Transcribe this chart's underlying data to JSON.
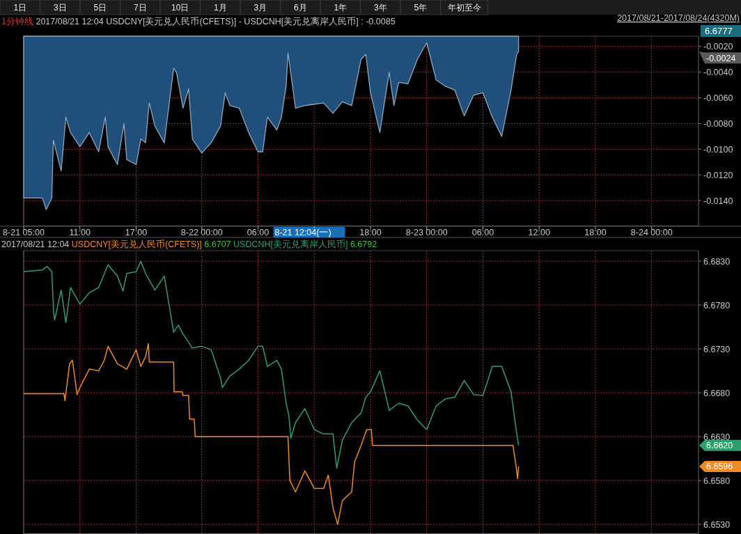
{
  "chart_data": [
    {
      "type": "area",
      "title": "1分钟线",
      "subtitle": "2017/08/21 12:04 USDCNY[美元兑人民币(CFETS)] - USDCNH[美元兑离岸人民币] : -0.0085",
      "xlim": [
        "2017-08-21T05:00",
        "2017-08-24T05:00"
      ],
      "xticks": [
        {
          "value": "2017-08-21T05:00",
          "label": "8-21 05:00"
        },
        {
          "value": "2017-08-21T11:00",
          "label": "11:00"
        },
        {
          "value": "2017-08-21T17:00",
          "label": "17:00"
        },
        {
          "value": "2017-08-22T00:00",
          "label": "8-22 00:00"
        },
        {
          "value": "2017-08-22T06:00",
          "label": "06:00"
        },
        {
          "value": "2017-08-22T12:00",
          "label": null
        },
        {
          "value": "2017-08-22T18:00",
          "label": "18:00"
        },
        {
          "value": "2017-08-23T00:00",
          "label": "8-23 00:00"
        },
        {
          "value": "2017-08-23T06:00",
          "label": "06:00"
        },
        {
          "value": "2017-08-23T12:00",
          "label": "12:00"
        },
        {
          "value": "2017-08-23T18:00",
          "label": "18:00"
        },
        {
          "value": "2017-08-24T00:00",
          "label": "8-24 00:00"
        }
      ],
      "ylim": [
        -0.016,
        -0.0012
      ],
      "yticks": [
        {
          "value": -0.002,
          "label": "-0.0020"
        },
        {
          "value": -0.004,
          "label": "-0.0040"
        },
        {
          "value": -0.006,
          "label": "-0.0060"
        },
        {
          "value": -0.008,
          "label": "-0.0080"
        },
        {
          "value": -0.01,
          "label": "-0.0100"
        },
        {
          "value": -0.012,
          "label": "-0.0120"
        },
        {
          "value": -0.014,
          "label": "-0.0140"
        }
      ],
      "grid": true,
      "annotations": [
        "2017/08/21-2017/08/24(4320M)",
        "8-21 12:04(一)",
        "6.6777",
        "-0.0024",
        "1日",
        "3日",
        "5日",
        "7日",
        "10日",
        "1月",
        "3月",
        "6月",
        "1年",
        "3年",
        "5年",
        "年初至今"
      ],
      "series": [
        {
          "color": "#1f4f7a",
          "x": [
            "2017-08-21T05:00",
            "2017-08-21T06:00",
            "2017-08-21T07:00",
            "2017-08-21T07:24",
            "2017-08-21T08:00",
            "2017-08-21T08:10",
            "2017-08-21T09:00",
            "2017-08-21T09:30",
            "2017-08-21T10:00",
            "2017-08-21T11:00",
            "2017-08-21T12:00",
            "2017-08-21T13:00",
            "2017-08-21T13:42",
            "2017-08-21T14:00",
            "2017-08-21T15:00",
            "2017-08-21T15:42",
            "2017-08-21T16:00",
            "2017-08-21T17:00",
            "2017-08-21T17:30",
            "2017-08-21T18:00",
            "2017-08-21T18:24",
            "2017-08-21T19:00",
            "2017-08-21T20:00",
            "2017-08-21T21:00",
            "2017-08-21T21:18",
            "2017-08-21T22:00",
            "2017-08-21T22:36",
            "2017-08-21T23:00",
            "2017-08-22T00:00",
            "2017-08-22T01:00",
            "2017-08-22T02:00",
            "2017-08-22T02:30",
            "2017-08-22T03:00",
            "2017-08-22T04:00",
            "2017-08-22T05:00",
            "2017-08-22T06:00",
            "2017-08-22T06:30",
            "2017-08-22T07:00",
            "2017-08-22T08:00",
            "2017-08-22T08:30",
            "2017-08-22T09:00",
            "2017-08-22T09:12",
            "2017-08-22T10:00",
            "2017-08-22T11:00",
            "2017-08-22T12:00",
            "2017-08-22T13:00",
            "2017-08-22T14:00",
            "2017-08-22T15:00",
            "2017-08-22T16:00",
            "2017-08-22T17:00",
            "2017-08-22T17:30",
            "2017-08-22T18:00",
            "2017-08-22T19:00",
            "2017-08-22T20:00",
            "2017-08-22T20:30",
            "2017-08-22T21:00",
            "2017-08-22T22:00",
            "2017-08-22T23:00",
            "2017-08-23T00:00",
            "2017-08-23T01:00",
            "2017-08-23T02:00",
            "2017-08-23T03:00",
            "2017-08-23T04:00",
            "2017-08-23T05:00",
            "2017-08-23T06:00",
            "2017-08-23T07:00",
            "2017-08-23T08:00",
            "2017-08-23T09:00",
            "2017-08-23T09:36",
            "2017-08-23T09:48"
          ],
          "values": [
            -0.0138,
            -0.0138,
            -0.0138,
            -0.0147,
            -0.0138,
            -0.0093,
            -0.0117,
            -0.0075,
            -0.0087,
            -0.0098,
            -0.0087,
            -0.0102,
            -0.0075,
            -0.0098,
            -0.0112,
            -0.008,
            -0.0108,
            -0.0112,
            -0.0092,
            -0.0095,
            -0.0064,
            -0.0082,
            -0.0095,
            -0.0037,
            -0.004,
            -0.0068,
            -0.0053,
            -0.0092,
            -0.0103,
            -0.0095,
            -0.0082,
            -0.0056,
            -0.0066,
            -0.0068,
            -0.0087,
            -0.0102,
            -0.0102,
            -0.0075,
            -0.0085,
            -0.0075,
            -0.0051,
            -0.0025,
            -0.0068,
            -0.0066,
            -0.0065,
            -0.0064,
            -0.0072,
            -0.0063,
            -0.0066,
            -0.003,
            -0.0026,
            -0.0056,
            -0.0087,
            -0.004,
            -0.0066,
            -0.0048,
            -0.0049,
            -0.003,
            -0.0017,
            -0.0046,
            -0.0051,
            -0.0054,
            -0.0074,
            -0.0058,
            -0.0056,
            -0.0075,
            -0.009,
            -0.0054,
            -0.0026,
            -0.0024
          ]
        }
      ]
    },
    {
      "type": "line",
      "title": "2017/08/21 12:04",
      "xlim": [
        "2017-08-21T05:00",
        "2017-08-24T05:00"
      ],
      "xticks": [
        "2017-08-21T05:00",
        "2017-08-21T11:00",
        "2017-08-21T17:00",
        "2017-08-22T00:00",
        "2017-08-22T06:00",
        "2017-08-22T12:00",
        "2017-08-22T18:00",
        "2017-08-23T00:00",
        "2017-08-23T06:00",
        "2017-08-23T12:00",
        "2017-08-23T18:00",
        "2017-08-24T00:00"
      ],
      "ylim": [
        6.6519,
        6.6842
      ],
      "yticks": [
        {
          "value": 6.683,
          "label": "6.6830"
        },
        {
          "value": 6.678,
          "label": "6.6780"
        },
        {
          "value": 6.673,
          "label": "6.6730"
        },
        {
          "value": 6.668,
          "label": "6.6680"
        },
        {
          "value": 6.663,
          "label": "6.6630"
        },
        {
          "value": 6.658,
          "label": "6.6580"
        },
        {
          "value": 6.653,
          "label": "6.6530"
        }
      ],
      "tick_labels": "y",
      "grid": true,
      "annotations": [
        "6.6707",
        "6.6792",
        "6.6596",
        "6.6620"
      ],
      "series": [
        {
          "name": "USDCNY[美元兑人民币(CFETS)]",
          "color": "#f08a24",
          "x": [
            "2017-08-21T05:00",
            "2017-08-21T09:18",
            "2017-08-21T09:24",
            "2017-08-21T09:54",
            "2017-08-21T10:12",
            "2017-08-21T10:42",
            "2017-08-21T11:00",
            "2017-08-21T12:00",
            "2017-08-21T13:00",
            "2017-08-21T13:36",
            "2017-08-21T14:00",
            "2017-08-21T15:00",
            "2017-08-21T16:00",
            "2017-08-21T17:00",
            "2017-08-21T17:30",
            "2017-08-21T18:00",
            "2017-08-21T18:18",
            "2017-08-21T18:24",
            "2017-08-21T21:00",
            "2017-08-21T21:03",
            "2017-08-21T21:54",
            "2017-08-21T22:00",
            "2017-08-21T22:36",
            "2017-08-21T22:42",
            "2017-08-21T23:12",
            "2017-08-21T23:18",
            "2017-08-22T09:12",
            "2017-08-22T09:24",
            "2017-08-22T10:00",
            "2017-08-22T11:00",
            "2017-08-22T12:00",
            "2017-08-22T13:00",
            "2017-08-22T13:30",
            "2017-08-22T14:00",
            "2017-08-22T14:30",
            "2017-08-22T15:00",
            "2017-08-22T16:00",
            "2017-08-22T16:18",
            "2017-08-22T17:00",
            "2017-08-22T17:36",
            "2017-08-22T18:06",
            "2017-08-22T18:12",
            "2017-08-23T09:12",
            "2017-08-23T09:30",
            "2017-08-23T09:42",
            "2017-08-23T09:48"
          ],
          "values": [
            6.6679,
            6.6679,
            6.6671,
            6.6713,
            6.6717,
            6.6678,
            6.6686,
            6.6707,
            6.6705,
            6.6717,
            6.6733,
            6.6713,
            6.6707,
            6.6729,
            6.671,
            6.6721,
            6.6736,
            6.6715,
            6.6715,
            6.6681,
            6.6681,
            6.6677,
            6.6677,
            6.665,
            6.665,
            6.663,
            6.663,
            6.658,
            6.6567,
            6.6591,
            6.6571,
            6.6571,
            6.6586,
            6.6549,
            6.653,
            6.6557,
            6.6567,
            6.6601,
            6.662,
            6.6638,
            6.6638,
            6.662,
            6.662,
            6.6599,
            6.6582,
            6.6596
          ]
        },
        {
          "name": "USDCNH[美元兑离岸人民币]",
          "color": "#2e9e6e",
          "x": [
            "2017-08-21T05:00",
            "2017-08-21T07:00",
            "2017-08-21T07:30",
            "2017-08-21T08:00",
            "2017-08-21T08:12",
            "2017-08-21T08:18",
            "2017-08-21T09:00",
            "2017-08-21T09:30",
            "2017-08-21T10:00",
            "2017-08-21T11:00",
            "2017-08-21T12:00",
            "2017-08-21T13:00",
            "2017-08-21T14:00",
            "2017-08-21T15:00",
            "2017-08-21T15:36",
            "2017-08-21T16:00",
            "2017-08-21T17:00",
            "2017-08-21T17:30",
            "2017-08-21T18:00",
            "2017-08-21T19:00",
            "2017-08-21T20:00",
            "2017-08-21T21:00",
            "2017-08-21T21:30",
            "2017-08-21T22:00",
            "2017-08-21T23:00",
            "2017-08-22T00:00",
            "2017-08-22T01:00",
            "2017-08-22T02:00",
            "2017-08-22T02:12",
            "2017-08-22T03:00",
            "2017-08-22T04:00",
            "2017-08-22T05:00",
            "2017-08-22T06:00",
            "2017-08-22T06:30",
            "2017-08-22T07:00",
            "2017-08-22T08:00",
            "2017-08-22T08:30",
            "2017-08-22T09:00",
            "2017-08-22T09:18",
            "2017-08-22T09:30",
            "2017-08-22T10:00",
            "2017-08-22T11:00",
            "2017-08-22T12:00",
            "2017-08-22T13:00",
            "2017-08-22T14:00",
            "2017-08-22T14:24",
            "2017-08-22T15:00",
            "2017-08-22T16:00",
            "2017-08-22T17:00",
            "2017-08-22T17:30",
            "2017-08-22T18:00",
            "2017-08-22T19:00",
            "2017-08-22T20:00",
            "2017-08-22T21:00",
            "2017-08-22T22:00",
            "2017-08-22T23:00",
            "2017-08-23T00:00",
            "2017-08-23T01:00",
            "2017-08-23T02:00",
            "2017-08-23T03:00",
            "2017-08-23T04:00",
            "2017-08-23T05:00",
            "2017-08-23T06:00",
            "2017-08-23T07:00",
            "2017-08-23T08:00",
            "2017-08-23T09:00",
            "2017-08-23T09:30",
            "2017-08-23T09:48"
          ],
          "values": [
            6.6818,
            6.682,
            6.6824,
            6.6818,
            6.6771,
            6.6763,
            6.6797,
            6.676,
            6.68,
            6.6781,
            6.6794,
            6.68,
            6.6826,
            6.6813,
            6.6796,
            6.6816,
            6.6818,
            6.683,
            6.6816,
            6.6797,
            6.6813,
            6.6749,
            6.6757,
            6.6747,
            6.6731,
            6.6733,
            6.6729,
            6.6697,
            6.6686,
            6.6699,
            6.6707,
            6.6717,
            6.6733,
            6.6733,
            6.671,
            6.6717,
            6.6707,
            6.6668,
            6.6654,
            6.6628,
            6.6646,
            6.6662,
            6.6638,
            6.6633,
            6.6633,
            6.6594,
            6.6626,
            6.6646,
            6.6657,
            6.6675,
            6.6681,
            6.6705,
            6.666,
            6.6668,
            6.6665,
            6.6649,
            6.6638,
            6.6665,
            6.6673,
            6.6675,
            6.6694,
            6.6678,
            6.6677,
            6.671,
            6.671,
            6.6681,
            6.6641,
            6.662
          ]
        }
      ]
    }
  ]
}
